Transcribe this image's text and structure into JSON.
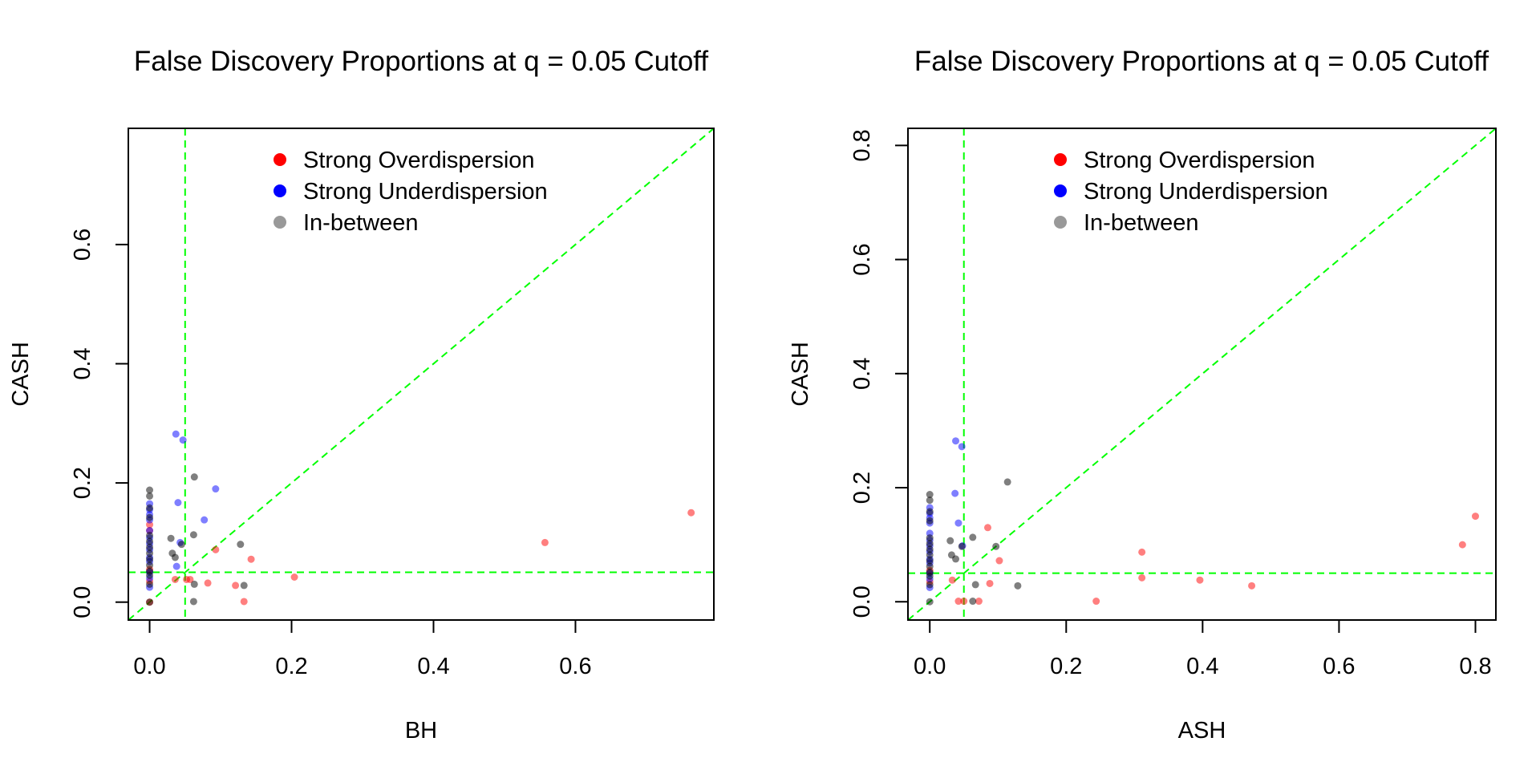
{
  "colors": {
    "strong_over": "#ff0000",
    "strong_under": "#0000ff",
    "in_between": "#000000",
    "legend_in_between": "#999999",
    "reference_lines": "#00ff00",
    "frame": "#000000"
  },
  "chart_data": [
    {
      "type": "scatter",
      "title": "False Discovery Proportions at q = 0.05 Cutoff",
      "xlabel": "BH",
      "ylabel": "CASH",
      "xlim": [
        -0.03,
        0.795
      ],
      "ylim": [
        -0.03,
        0.795
      ],
      "x_ticks": [
        0.0,
        0.2,
        0.4,
        0.6
      ],
      "x_tick_labels": [
        "0.0",
        "0.2",
        "0.4",
        "0.6"
      ],
      "y_ticks": [
        0.0,
        0.2,
        0.4,
        0.6
      ],
      "y_tick_labels": [
        "0.0",
        "0.2",
        "0.4",
        "0.6"
      ],
      "grid": false,
      "reference_lines": {
        "vertical_x": 0.05,
        "horizontal_y": 0.05,
        "identity": true
      },
      "legend": {
        "position": "top-center",
        "entries": [
          "Strong Overdispersion",
          "Strong Underdispersion",
          "In-between"
        ]
      },
      "series": [
        {
          "name": "Strong Overdispersion",
          "points": [
            [
              0.763,
              0.15
            ],
            [
              0.557,
              0.1
            ],
            [
              0.204,
              0.042
            ],
            [
              0.143,
              0.072
            ],
            [
              0.133,
              0.001
            ],
            [
              0.121,
              0.028
            ],
            [
              0.093,
              0.088
            ],
            [
              0.082,
              0.032
            ],
            [
              0.057,
              0.038
            ],
            [
              0.052,
              0.038
            ],
            [
              0.036,
              0.038
            ],
            [
              0.0,
              0.13
            ],
            [
              0.0,
              0.12
            ],
            [
              0.0,
              0.055
            ],
            [
              0.0,
              0.035
            ],
            [
              0.0,
              0.0
            ]
          ]
        },
        {
          "name": "Strong Underdispersion",
          "points": [
            [
              0.037,
              0.282
            ],
            [
              0.047,
              0.272
            ],
            [
              0.093,
              0.19
            ],
            [
              0.04,
              0.167
            ],
            [
              0.077,
              0.138
            ],
            [
              0.043,
              0.1
            ],
            [
              0.038,
              0.06
            ],
            [
              0.0,
              0.165
            ],
            [
              0.0,
              0.155
            ],
            [
              0.0,
              0.147
            ],
            [
              0.0,
              0.138
            ],
            [
              0.0,
              0.12
            ],
            [
              0.0,
              0.108
            ],
            [
              0.0,
              0.098
            ],
            [
              0.0,
              0.088
            ],
            [
              0.0,
              0.075
            ],
            [
              0.0,
              0.068
            ],
            [
              0.0,
              0.05
            ],
            [
              0.0,
              0.04
            ],
            [
              0.0,
              0.025
            ]
          ]
        },
        {
          "name": "In-between",
          "points": [
            [
              0.063,
              0.21
            ],
            [
              0.128,
              0.097
            ],
            [
              0.062,
              0.113
            ],
            [
              0.03,
              0.107
            ],
            [
              0.045,
              0.097
            ],
            [
              0.032,
              0.082
            ],
            [
              0.036,
              0.075
            ],
            [
              0.063,
              0.03
            ],
            [
              0.133,
              0.028
            ],
            [
              0.062,
              0.001
            ],
            [
              0.0,
              0.188
            ],
            [
              0.0,
              0.178
            ],
            [
              0.0,
              0.158
            ],
            [
              0.0,
              0.142
            ],
            [
              0.0,
              0.112
            ],
            [
              0.0,
              0.102
            ],
            [
              0.0,
              0.092
            ],
            [
              0.0,
              0.082
            ],
            [
              0.0,
              0.072
            ],
            [
              0.0,
              0.062
            ],
            [
              0.0,
              0.052
            ],
            [
              0.0,
              0.045
            ],
            [
              0.0,
              0.03
            ],
            [
              0.0,
              0.0
            ]
          ]
        }
      ]
    },
    {
      "type": "scatter",
      "title": "False Discovery Proportions at q = 0.05 Cutoff",
      "xlabel": "ASH",
      "ylabel": "CASH",
      "xlim": [
        -0.032,
        0.83
      ],
      "ylim": [
        -0.032,
        0.83
      ],
      "x_ticks": [
        0.0,
        0.2,
        0.4,
        0.6,
        0.8
      ],
      "x_tick_labels": [
        "0.0",
        "0.2",
        "0.4",
        "0.6",
        "0.8"
      ],
      "y_ticks": [
        0.0,
        0.2,
        0.4,
        0.6,
        0.8
      ],
      "y_tick_labels": [
        "0.0",
        "0.2",
        "0.4",
        "0.6",
        "0.8"
      ],
      "grid": false,
      "reference_lines": {
        "vertical_x": 0.05,
        "horizontal_y": 0.05,
        "identity": true
      },
      "legend": {
        "position": "top-center",
        "entries": [
          "Strong Overdispersion",
          "Strong Underdispersion",
          "In-between"
        ]
      },
      "series": [
        {
          "name": "Strong Overdispersion",
          "points": [
            [
              0.8,
              0.15
            ],
            [
              0.781,
              0.1
            ],
            [
              0.472,
              0.028
            ],
            [
              0.396,
              0.038
            ],
            [
              0.311,
              0.087
            ],
            [
              0.311,
              0.042
            ],
            [
              0.244,
              0.001
            ],
            [
              0.102,
              0.072
            ],
            [
              0.085,
              0.13
            ],
            [
              0.088,
              0.032
            ],
            [
              0.072,
              0.001
            ],
            [
              0.05,
              0.001
            ],
            [
              0.042,
              0.001
            ],
            [
              0.033,
              0.038
            ],
            [
              0.0,
              0.055
            ],
            [
              0.0,
              0.035
            ]
          ]
        },
        {
          "name": "Strong Underdispersion",
          "points": [
            [
              0.038,
              0.282
            ],
            [
              0.047,
              0.272
            ],
            [
              0.037,
              0.19
            ],
            [
              0.042,
              0.138
            ],
            [
              0.048,
              0.098
            ],
            [
              0.0,
              0.165
            ],
            [
              0.0,
              0.155
            ],
            [
              0.0,
              0.147
            ],
            [
              0.0,
              0.138
            ],
            [
              0.0,
              0.12
            ],
            [
              0.0,
              0.108
            ],
            [
              0.0,
              0.098
            ],
            [
              0.0,
              0.088
            ],
            [
              0.0,
              0.075
            ],
            [
              0.0,
              0.068
            ],
            [
              0.0,
              0.05
            ],
            [
              0.0,
              0.04
            ],
            [
              0.0,
              0.025
            ]
          ]
        },
        {
          "name": "In-between",
          "points": [
            [
              0.114,
              0.21
            ],
            [
              0.097,
              0.097
            ],
            [
              0.063,
              0.113
            ],
            [
              0.03,
              0.107
            ],
            [
              0.047,
              0.097
            ],
            [
              0.032,
              0.082
            ],
            [
              0.038,
              0.075
            ],
            [
              0.067,
              0.03
            ],
            [
              0.129,
              0.028
            ],
            [
              0.063,
              0.001
            ],
            [
              0.0,
              0.188
            ],
            [
              0.0,
              0.178
            ],
            [
              0.0,
              0.158
            ],
            [
              0.0,
              0.142
            ],
            [
              0.0,
              0.112
            ],
            [
              0.0,
              0.102
            ],
            [
              0.0,
              0.092
            ],
            [
              0.0,
              0.082
            ],
            [
              0.0,
              0.072
            ],
            [
              0.0,
              0.062
            ],
            [
              0.0,
              0.052
            ],
            [
              0.0,
              0.045
            ],
            [
              0.0,
              0.03
            ],
            [
              0.0,
              0.0
            ]
          ]
        }
      ]
    }
  ]
}
